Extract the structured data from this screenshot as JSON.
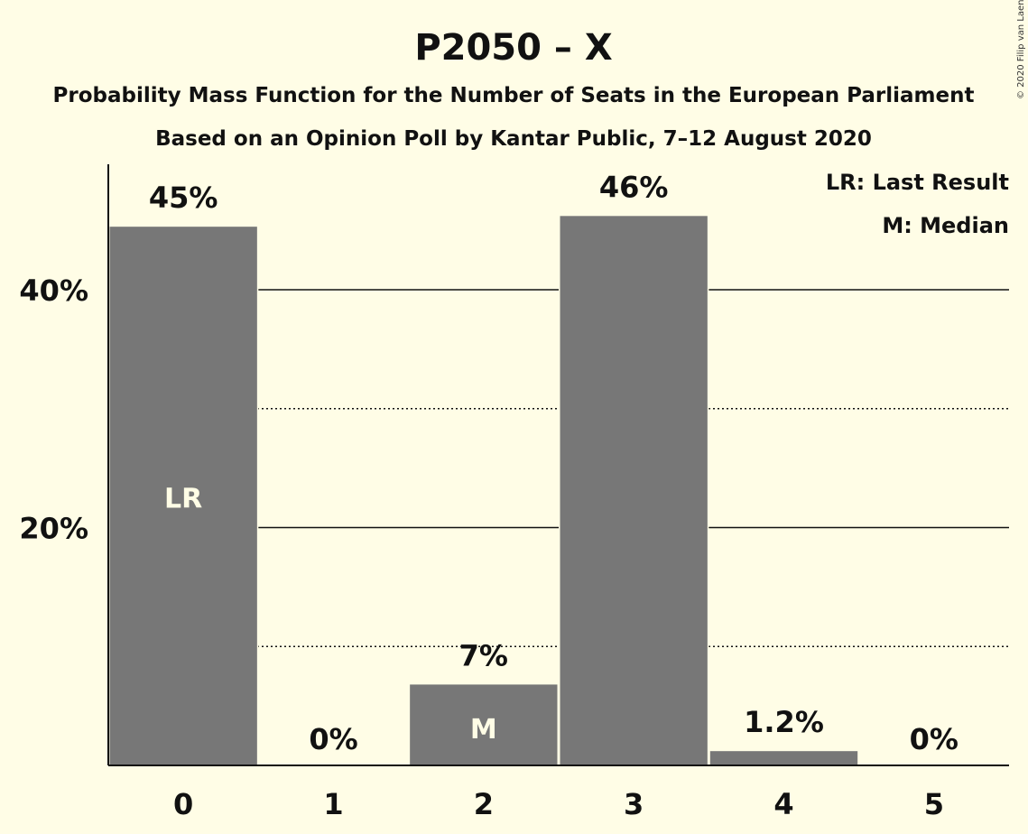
{
  "chart_data": {
    "type": "bar",
    "title": "P2050 – X",
    "subtitle": "Probability Mass Function for the Number of Seats in the European Parliament",
    "subtitle2": "Based on an Opinion Poll by Kantar Public, 7–12 August 2020",
    "copyright": "© 2020 Filip van Laenen",
    "categories": [
      "0",
      "1",
      "2",
      "3",
      "4",
      "5"
    ],
    "values": [
      45.3,
      0,
      6.8,
      46.2,
      1.2,
      0
    ],
    "value_labels": [
      "45%",
      "0%",
      "7%",
      "46%",
      "1.2%",
      "0%"
    ],
    "bar_annotations": [
      "LR",
      "",
      "M",
      "",
      "",
      ""
    ],
    "yticks": [
      {
        "value": 20,
        "label": "20%"
      },
      {
        "value": 40,
        "label": "40%"
      }
    ],
    "minor_gridlines": [
      10,
      30
    ],
    "ylim": [
      0,
      50
    ],
    "xlabel": "",
    "ylabel": "",
    "legend": [
      "LR: Last Result",
      "M: Median"
    ],
    "legend_position": "top-right",
    "bar_color": "#777777",
    "background_color": "#fffde6"
  }
}
